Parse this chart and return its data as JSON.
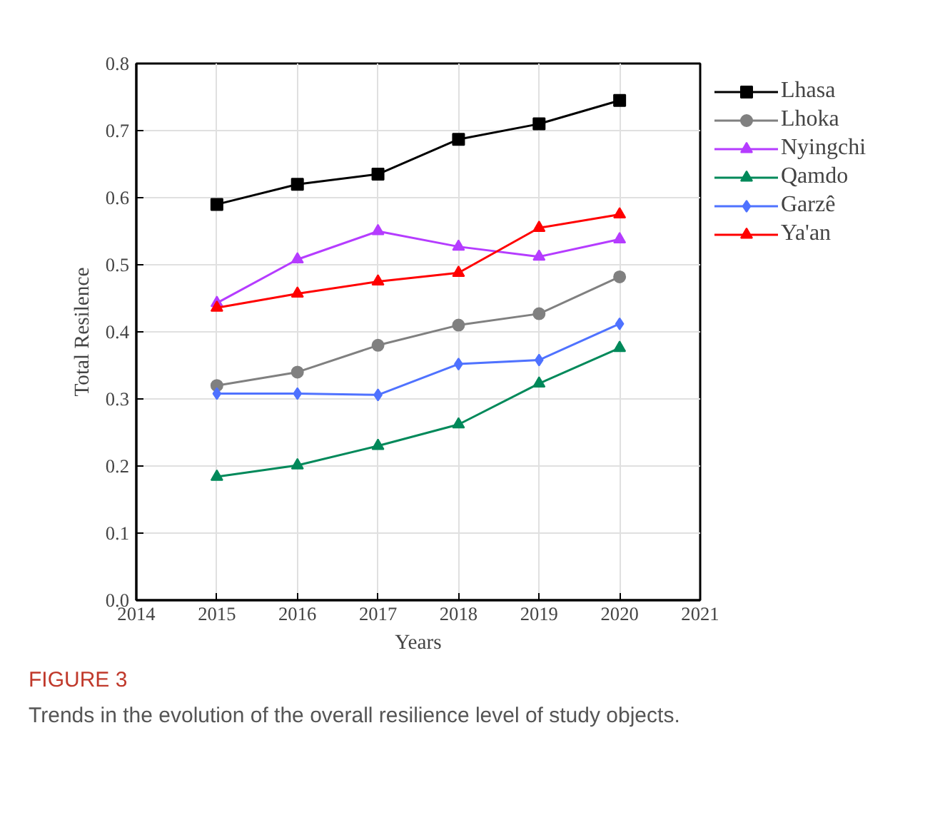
{
  "chart_data": {
    "type": "line",
    "xlabel": "Years",
    "ylabel": "Total Resilence",
    "x": [
      2015,
      2016,
      2017,
      2018,
      2019,
      2020
    ],
    "xlim": [
      2014,
      2021
    ],
    "xticks": [
      2014,
      2015,
      2016,
      2017,
      2018,
      2019,
      2020,
      2021
    ],
    "ylim": [
      0,
      0.8
    ],
    "yticks": [
      {
        "value": 0,
        "label": "0.0"
      },
      0.1,
      0.2,
      0.3,
      0.4,
      0.5,
      0.6,
      0.7,
      0.8
    ],
    "grid": true,
    "legend": "right",
    "line_style": "solid",
    "series": [
      {
        "name": "Lhasa",
        "color": "#000000",
        "marker": "square",
        "values": [
          0.59,
          0.62,
          0.635,
          0.687,
          0.71,
          0.745
        ]
      },
      {
        "name": "Lhoka",
        "color": "#808080",
        "marker": "circle",
        "values": [
          0.32,
          0.34,
          0.38,
          0.41,
          0.427,
          0.482
        ]
      },
      {
        "name": "Nyingchi",
        "color": "#b53cff",
        "marker": "triangle",
        "values": [
          0.443,
          0.508,
          0.55,
          0.527,
          0.512,
          0.538
        ]
      },
      {
        "name": "Qamdo",
        "color": "#00895a",
        "marker": "triangle",
        "values": [
          0.184,
          0.201,
          0.23,
          0.262,
          0.323,
          0.376
        ]
      },
      {
        "name": "Garzê",
        "color": "#4f72ff",
        "marker": "diamond",
        "values": [
          0.308,
          0.308,
          0.306,
          0.352,
          0.358,
          0.412
        ]
      },
      {
        "name": "Ya'an",
        "color": "#ff0000",
        "marker": "triangle",
        "values": [
          0.436,
          0.457,
          0.475,
          0.488,
          0.555,
          0.575
        ]
      }
    ],
    "annotations": [
      "FIGURE 3",
      "Trends in the evolution of the overall resilience level of study objects."
    ]
  }
}
